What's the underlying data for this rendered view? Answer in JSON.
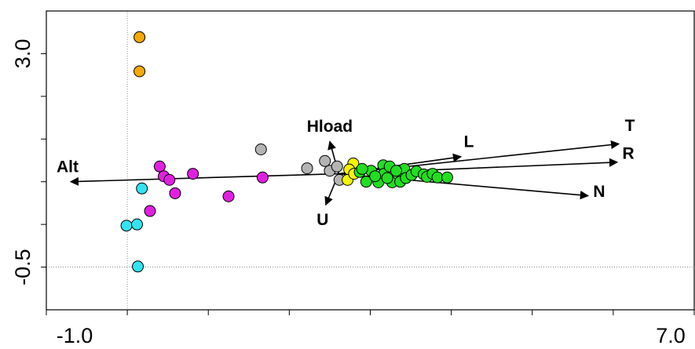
{
  "chart_data": {
    "type": "scatter",
    "xlim": [
      -1.0,
      7.0
    ],
    "ylim": [
      -1.2,
      3.7
    ],
    "xticks": [
      {
        "value": -1.0,
        "label": "-1.0"
      },
      {
        "value": 7.0,
        "label": "7.0"
      }
    ],
    "xminorticks": [
      0,
      1,
      2,
      3,
      4,
      5,
      6
    ],
    "yticks": [
      {
        "value": 3.0,
        "label": "3.0"
      },
      {
        "value": -0.5,
        "label": "-0.5"
      }
    ],
    "yminorticks": [
      2.3,
      1.6,
      0.9,
      0.2
    ],
    "reference_lines": {
      "x": 0,
      "y": -0.5
    },
    "series": [
      {
        "color": "#f5a800",
        "x": [
          0.15,
          0.15
        ],
        "y": [
          3.27,
          2.71
        ]
      },
      {
        "color": "#33e3f0",
        "x": [
          0.18,
          -0.01,
          0.12,
          0.13
        ],
        "y": [
          0.79,
          0.18,
          0.2,
          -0.49
        ]
      },
      {
        "color": "#e020e0",
        "x": [
          0.4,
          0.45,
          0.52,
          0.59,
          0.81,
          0.28,
          1.25,
          1.67
        ],
        "y": [
          1.15,
          0.99,
          0.93,
          0.71,
          1.03,
          0.42,
          0.66,
          0.97
        ]
      },
      {
        "color": "#b4b4b4",
        "x": [
          1.65,
          2.22,
          2.44,
          2.5,
          2.62,
          2.59
        ],
        "y": [
          1.43,
          1.12,
          1.24,
          1.08,
          0.93,
          1.15
        ]
      },
      {
        "color": "#f5f500",
        "x": [
          2.79,
          2.74,
          2.72,
          2.8
        ],
        "y": [
          1.2,
          1.1,
          0.93,
          1.03
        ]
      },
      {
        "color": "#22dd22",
        "x": [
          2.87,
          2.95,
          3.01,
          3.1,
          3.16,
          3.17,
          3.24,
          3.27,
          3.34,
          3.37,
          3.42,
          3.44,
          3.51,
          3.57,
          3.66,
          3.7,
          3.77,
          3.83,
          3.95,
          2.9,
          3.06,
          3.21,
          3.32
        ],
        "y": [
          1.06,
          0.9,
          1.08,
          0.89,
          1.17,
          1.03,
          1.15,
          0.89,
          1.03,
          0.9,
          1.11,
          0.96,
          1.01,
          1.07,
          1.02,
          0.98,
          1.03,
          0.97,
          0.97,
          1.11,
          0.99,
          0.96,
          1.08
        ]
      }
    ],
    "arrow_origin": [
      2.61,
      1.03
    ],
    "arrows": [
      {
        "label": "Alt",
        "x": -0.7,
        "y": 0.9
      },
      {
        "label": "T",
        "x": 6.07,
        "y": 1.52
      },
      {
        "label": "R",
        "x": 6.05,
        "y": 1.22
      },
      {
        "label": "L",
        "x": 4.12,
        "y": 1.31
      },
      {
        "label": "N",
        "x": 5.69,
        "y": 0.67
      },
      {
        "label": "Hload",
        "x": 2.5,
        "y": 1.56
      },
      {
        "label": "U",
        "x": 2.45,
        "y": 0.52
      }
    ]
  }
}
